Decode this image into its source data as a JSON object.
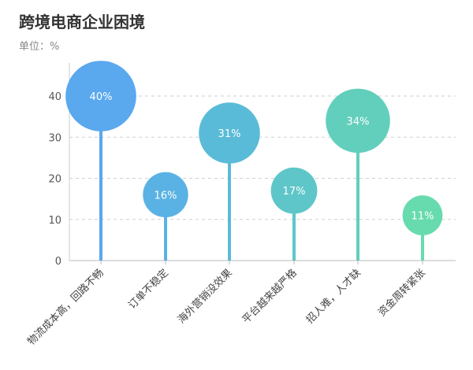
{
  "chart_data": {
    "type": "bar",
    "title": "跨境电商企业困境",
    "unit_label": "单位：%",
    "categories": [
      "物流成本高，回路不畅",
      "订单不稳定",
      "海外营销没效果",
      "平台越来越严格",
      "招人难，人才缺",
      "资金周转紧张"
    ],
    "values": [
      40,
      16,
      31,
      17,
      34,
      11
    ],
    "value_labels": [
      "40%",
      "16%",
      "31%",
      "17%",
      "34%",
      "11%"
    ],
    "y_ticks": [
      "0",
      "10",
      "20",
      "30",
      "40"
    ],
    "ylim": [
      0,
      40
    ],
    "grid": "horizontal dashed",
    "colors": [
      "#5aa8ee",
      "#5ab2e4",
      "#5abbd8",
      "#5ec6c8",
      "#62cfbc",
      "#68dbae"
    ]
  }
}
